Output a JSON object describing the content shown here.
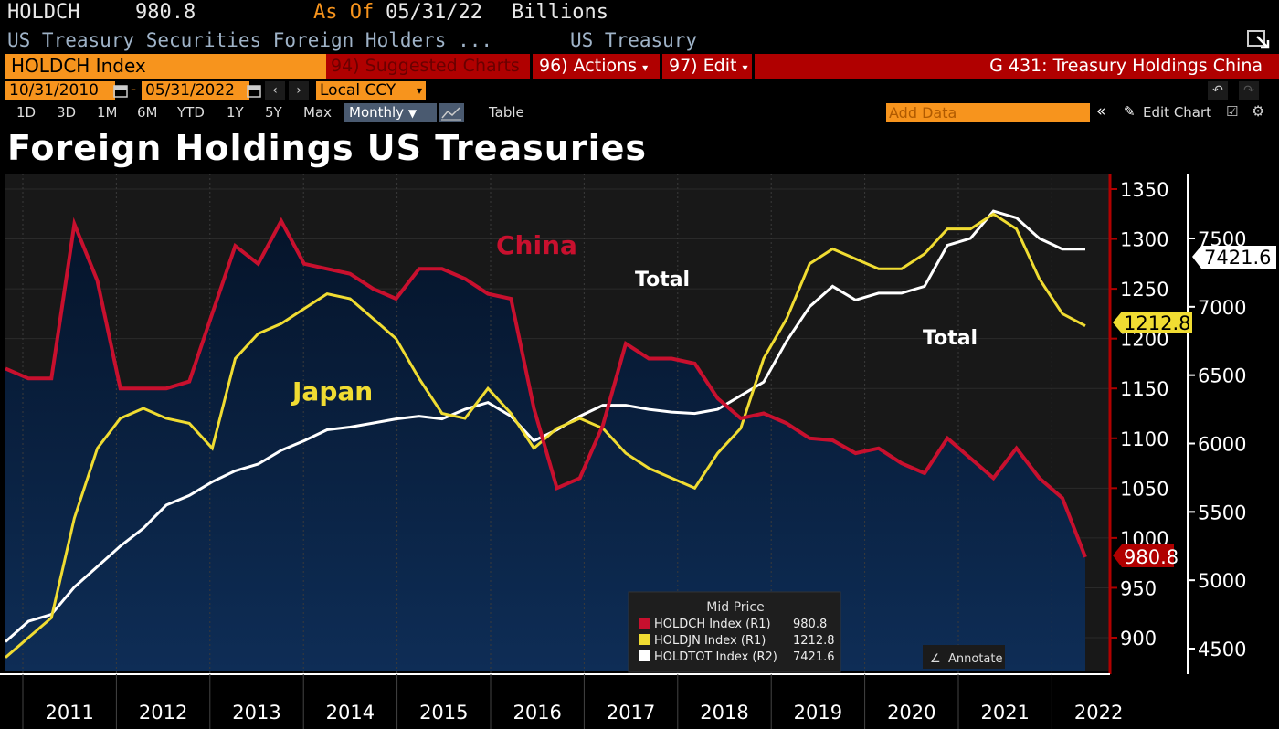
{
  "header": {
    "ticker": "HOLDCH",
    "last_value": "980.8",
    "as_of_label": "As Of",
    "as_of_date": "05/31/22",
    "units": "Billions",
    "description": "US Treasury Securities Foreign Holders ...",
    "source": "US Treasury"
  },
  "toolbar": {
    "security": "HOLDCH Index",
    "suggested": "94) Suggested Charts",
    "actions": "96) Actions",
    "edit": "97) Edit",
    "chart_name": "G 431: Treasury Holdings China",
    "start_date": "10/31/2010",
    "end_date": "05/31/2022",
    "currency": "Local CCY",
    "periods": [
      "1D",
      "3D",
      "1M",
      "6M",
      "YTD",
      "1Y",
      "5Y",
      "Max"
    ],
    "frequency": "Monthly",
    "table": "Table",
    "add_data_placeholder": "Add Data",
    "edit_chart": "Edit Chart"
  },
  "chart_title": "Foreign Holdings US Treasuries",
  "colors": {
    "china": "#c8102e",
    "japan": "#f0dc32",
    "total": "#ffffff",
    "area_top": "#05142a",
    "area_bottom": "#0d2a52",
    "orange": "#f7941d",
    "axis_red": "#b00000"
  },
  "icons": [
    "calendar-icon",
    "chevron-left-icon",
    "chevron-right-icon",
    "undo-icon",
    "redo-icon",
    "pencil-icon",
    "settings-icon",
    "expand-icon",
    "chevron-double-left-icon",
    "line-chart-icon"
  ],
  "chart_data": {
    "type": "line",
    "x": [
      "2010-10",
      "2011-01",
      "2011-04",
      "2011-07",
      "2011-10",
      "2012-01",
      "2012-04",
      "2012-07",
      "2012-10",
      "2013-01",
      "2013-04",
      "2013-07",
      "2013-10",
      "2014-01",
      "2014-04",
      "2014-07",
      "2014-10",
      "2015-01",
      "2015-04",
      "2015-07",
      "2015-10",
      "2016-01",
      "2016-04",
      "2016-07",
      "2016-10",
      "2017-01",
      "2017-04",
      "2017-07",
      "2017-10",
      "2018-01",
      "2018-04",
      "2018-07",
      "2018-10",
      "2019-01",
      "2019-04",
      "2019-07",
      "2019-10",
      "2020-01",
      "2020-04",
      "2020-07",
      "2020-10",
      "2021-01",
      "2021-04",
      "2021-07",
      "2021-10",
      "2022-01",
      "2022-04",
      "2022-05"
    ],
    "x_axis_years": [
      "2011",
      "2012",
      "2013",
      "2014",
      "2015",
      "2016",
      "2017",
      "2018",
      "2019",
      "2020",
      "2021",
      "2022"
    ],
    "left_axis": {
      "label": "R1",
      "ticks": [
        900,
        950,
        1000,
        1050,
        1100,
        1150,
        1200,
        1250,
        1300,
        1350
      ],
      "ylim": [
        875,
        1370
      ]
    },
    "right_axis": {
      "label": "R2",
      "ticks": [
        4500,
        5000,
        5500,
        6000,
        6500,
        7000,
        7500
      ],
      "ylim": [
        4250,
        7850
      ]
    },
    "series": [
      {
        "name": "HOLDCH Index",
        "axis": "R1",
        "last": "980.8",
        "values": [
          1170,
          1160,
          1160,
          1315,
          1258,
          1150,
          1150,
          1150,
          1157,
          1225,
          1293,
          1275,
          1318,
          1275,
          1270,
          1265,
          1250,
          1240,
          1270,
          1270,
          1260,
          1245,
          1240,
          1130,
          1050,
          1060,
          1113,
          1195,
          1180,
          1180,
          1175,
          1140,
          1120,
          1125,
          1115,
          1100,
          1098,
          1085,
          1090,
          1075,
          1065,
          1100,
          1080,
          1060,
          1090,
          1060,
          1040,
          980.8
        ]
      },
      {
        "name": "HOLDJN Index",
        "axis": "R1",
        "last": "1212.8",
        "values": [
          880,
          900,
          920,
          1020,
          1090,
          1120,
          1130,
          1120,
          1115,
          1090,
          1180,
          1205,
          1215,
          1230,
          1245,
          1240,
          1220,
          1200,
          1160,
          1125,
          1120,
          1150,
          1125,
          1090,
          1110,
          1120,
          1110,
          1085,
          1070,
          1060,
          1050,
          1085,
          1110,
          1180,
          1220,
          1275,
          1290,
          1280,
          1270,
          1270,
          1285,
          1310,
          1310,
          1325,
          1310,
          1260,
          1225,
          1212.8
        ]
      },
      {
        "name": "HOLDTOT Index",
        "axis": "R2",
        "last": "7421.6",
        "values": [
          4550,
          4700,
          4750,
          4950,
          5100,
          5250,
          5380,
          5550,
          5620,
          5720,
          5800,
          5850,
          5950,
          6020,
          6100,
          6120,
          6150,
          6180,
          6200,
          6180,
          6250,
          6300,
          6200,
          6020,
          6100,
          6200,
          6280,
          6280,
          6250,
          6230,
          6220,
          6250,
          6350,
          6450,
          6750,
          7000,
          7150,
          7050,
          7100,
          7100,
          7150,
          7450,
          7500,
          7700,
          7650,
          7500,
          7421.6,
          7421.6
        ]
      }
    ]
  },
  "annotations": {
    "china": "China",
    "japan": "Japan",
    "total_a": "Total",
    "total_b": "Total"
  },
  "legend": {
    "title": "Mid Price",
    "rows": [
      {
        "label": "HOLDCH Index  (R1)",
        "value": "980.8"
      },
      {
        "label": "HOLDJN Index  (R1)",
        "value": "1212.8"
      },
      {
        "label": "HOLDTOT Index  (R2)",
        "value": "7421.6"
      }
    ]
  },
  "annotate_button": "Annotate",
  "last_badges": {
    "china": "980.8",
    "japan": "1212.8",
    "total": "7421.6"
  }
}
